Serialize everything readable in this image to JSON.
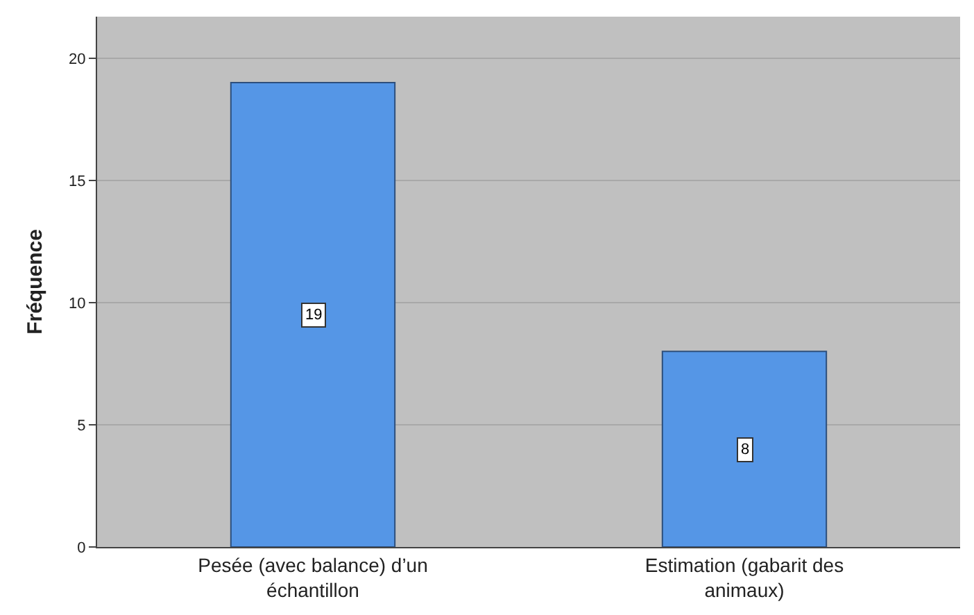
{
  "chart_data": {
    "type": "bar",
    "ylabel": "Fréquence",
    "categories": [
      "Pesée (avec balance) d’un échantillon",
      "Estimation (gabarit des animaux)"
    ],
    "values": [
      19,
      8
    ],
    "color": "#5596e6",
    "ylim": [
      0,
      21.7
    ],
    "yticks": [
      0,
      5,
      10,
      15,
      20
    ],
    "grid": "y",
    "data_labels": true
  }
}
